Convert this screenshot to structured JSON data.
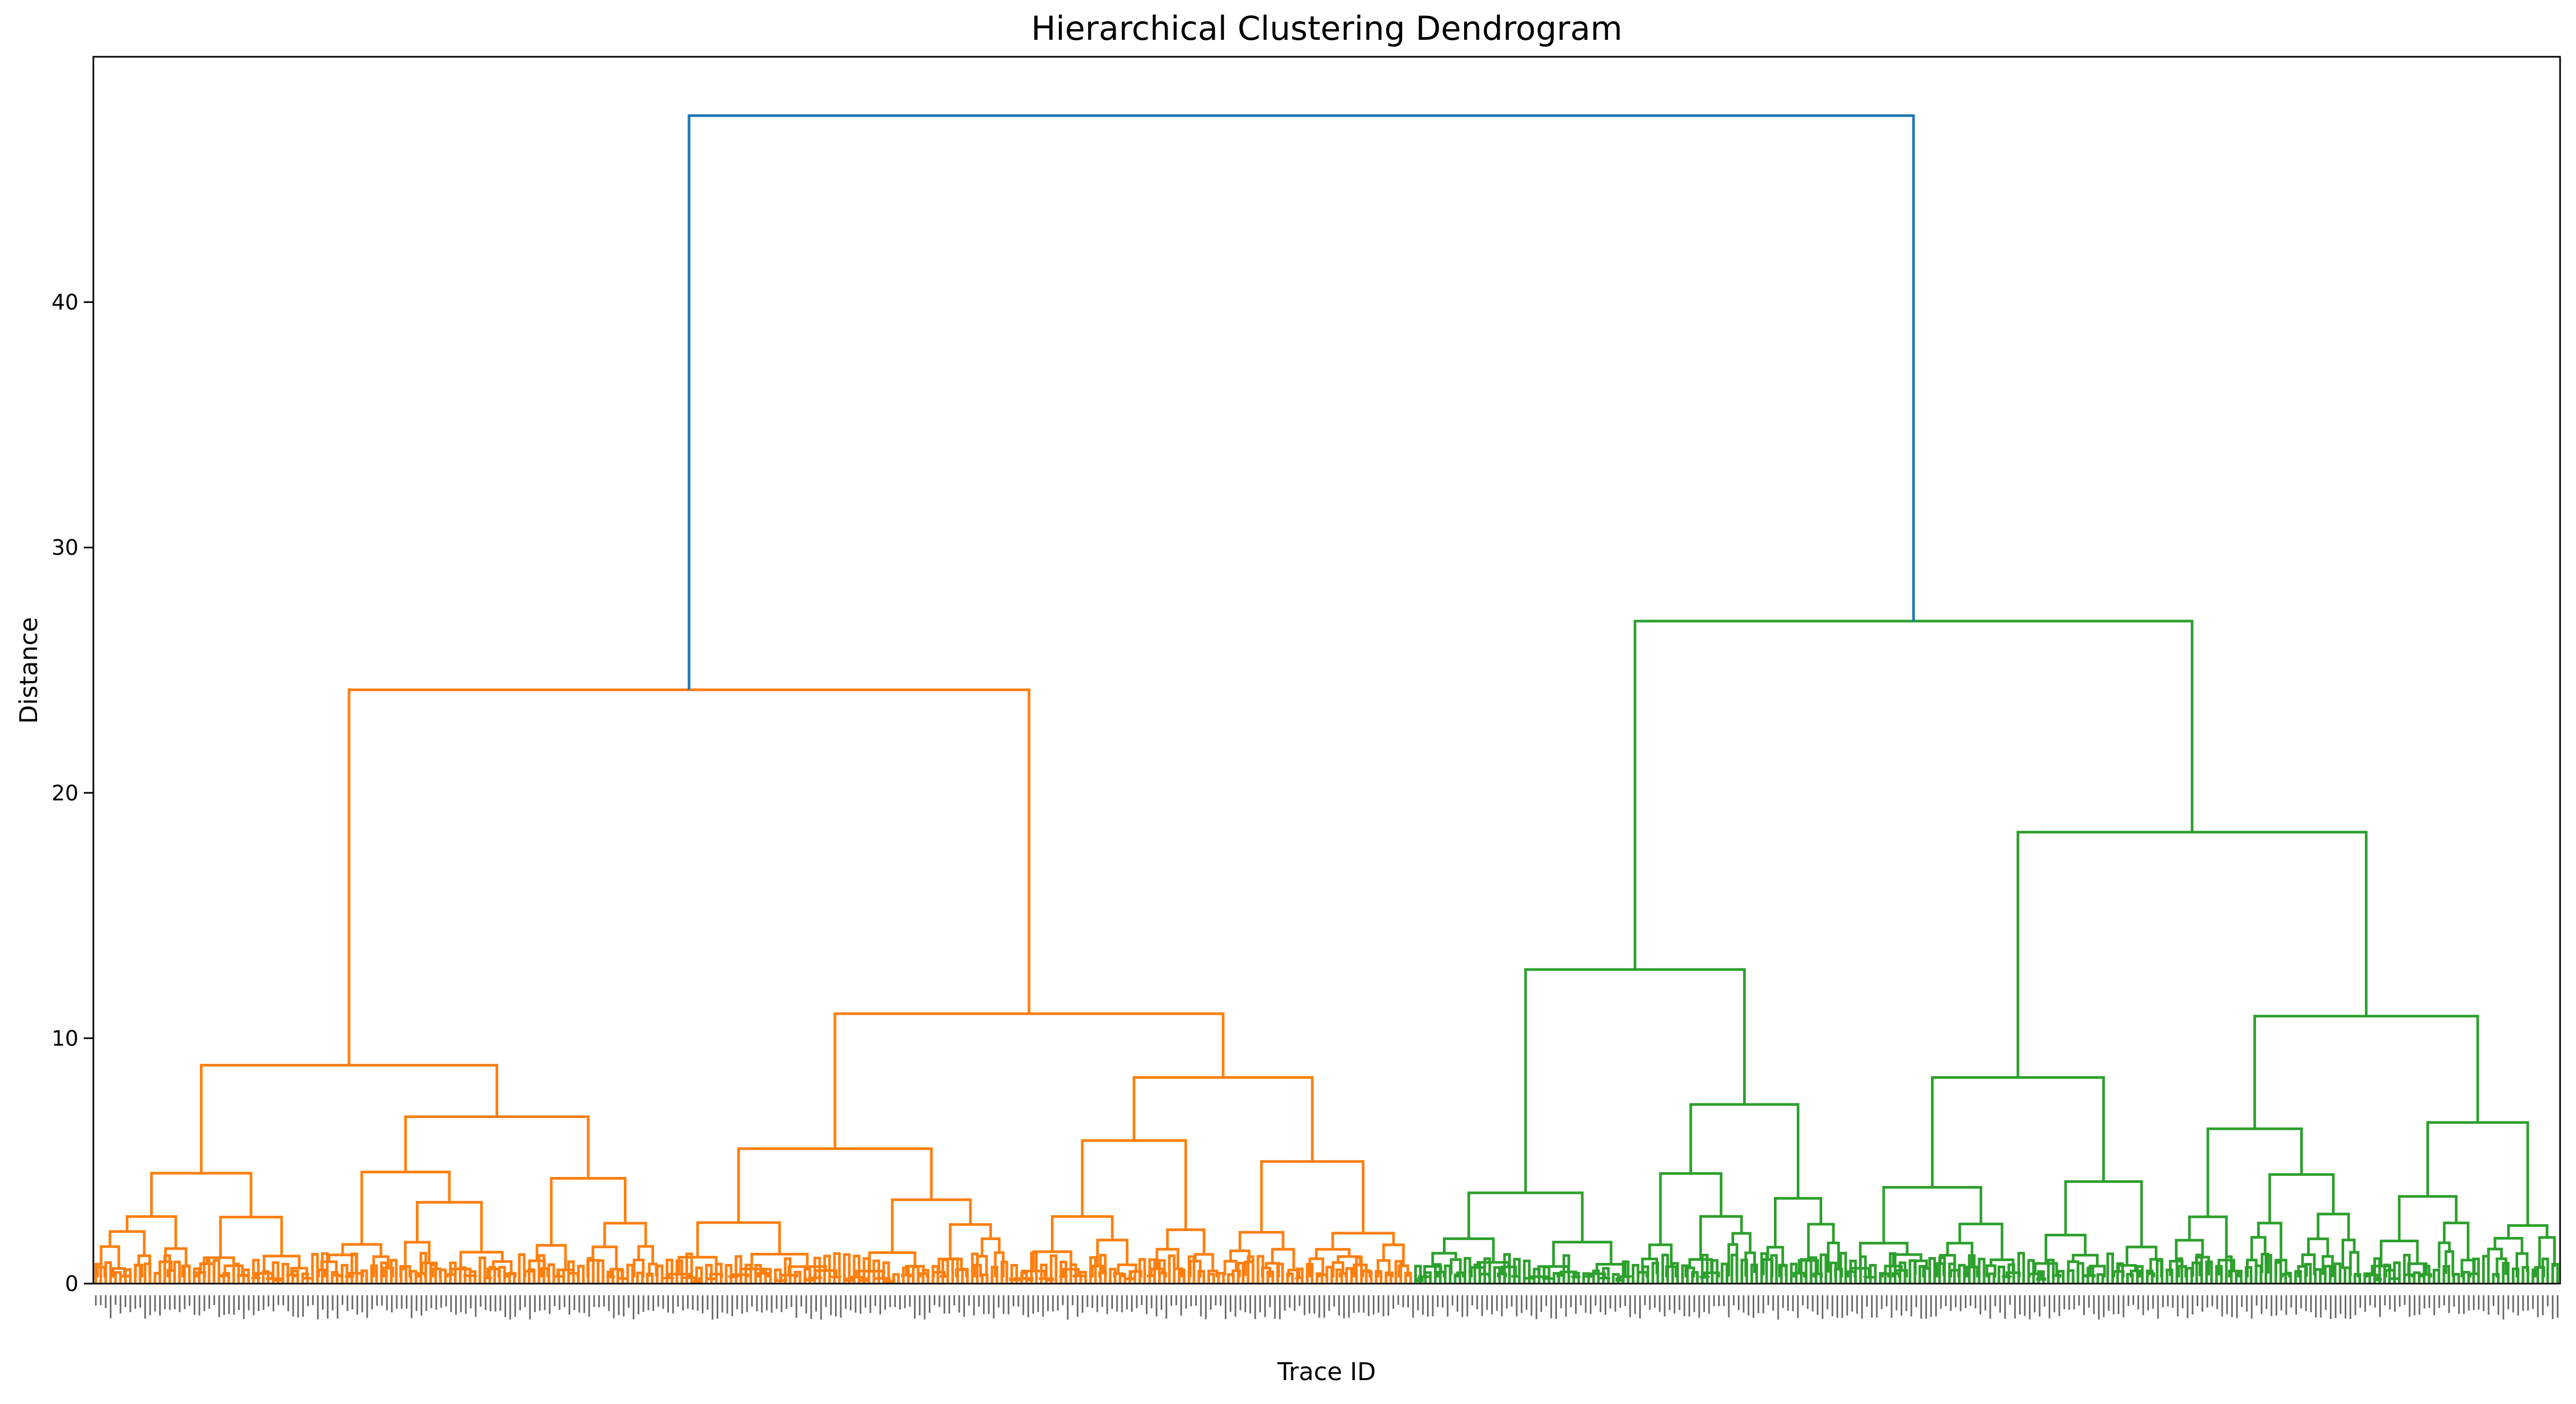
{
  "chart_data": {
    "type": "dendrogram",
    "title": "Hierarchical Clustering Dendrogram",
    "xlabel": "Trace ID",
    "ylabel": "Distance",
    "ylim": [
      0,
      50
    ],
    "yticks": [
      0,
      10,
      20,
      30,
      40
    ],
    "grid": false,
    "colors": {
      "root": "#1f77b4",
      "cluster_1": "#ff7f0e",
      "cluster_2": "#2ca02c",
      "axes": "#000000"
    },
    "leaf_count_estimate": 500,
    "clusters": [
      {
        "name": "cluster_1",
        "color": "#ff7f0e",
        "merge_height": 24.2,
        "leaf_range": [
          0.0,
          0.535
        ],
        "children": [
          {
            "merge_height": 8.9,
            "leaf_range": [
              0.0,
              0.23
            ],
            "children": [
              {
                "merge_height": 4.5,
                "leaf_range": [
                  0.0,
                  0.09
                ]
              },
              {
                "merge_height": 6.8,
                "leaf_range": [
                  0.09,
                  0.23
                ]
              }
            ]
          },
          {
            "merge_height": 11.0,
            "leaf_range": [
              0.23,
              0.535
            ],
            "children": [
              {
                "merge_height": 5.5,
                "leaf_range": [
                  0.23,
                  0.37
                ]
              },
              {
                "merge_height": 8.4,
                "leaf_range": [
                  0.37,
                  0.535
                ]
              }
            ]
          }
        ]
      },
      {
        "name": "cluster_2",
        "color": "#2ca02c",
        "merge_height": 27.0,
        "leaf_range": [
          0.535,
          1.0
        ],
        "children": [
          {
            "merge_height": 12.8,
            "leaf_range": [
              0.535,
              0.71
            ],
            "children": [
              {
                "merge_height": 3.7,
                "leaf_range": [
                  0.535,
                  0.625
                ]
              },
              {
                "merge_height": 7.3,
                "leaf_range": [
                  0.625,
                  0.71
                ]
              }
            ]
          },
          {
            "merge_height": 18.4,
            "leaf_range": [
              0.71,
              1.0
            ],
            "children": [
              {
                "merge_height": 8.4,
                "leaf_range": [
                  0.71,
                  0.84
                ]
              },
              {
                "merge_height": 10.9,
                "leaf_range": [
                  0.84,
                  1.0
                ]
              }
            ]
          }
        ]
      }
    ],
    "root_merge_height": 47.6
  }
}
